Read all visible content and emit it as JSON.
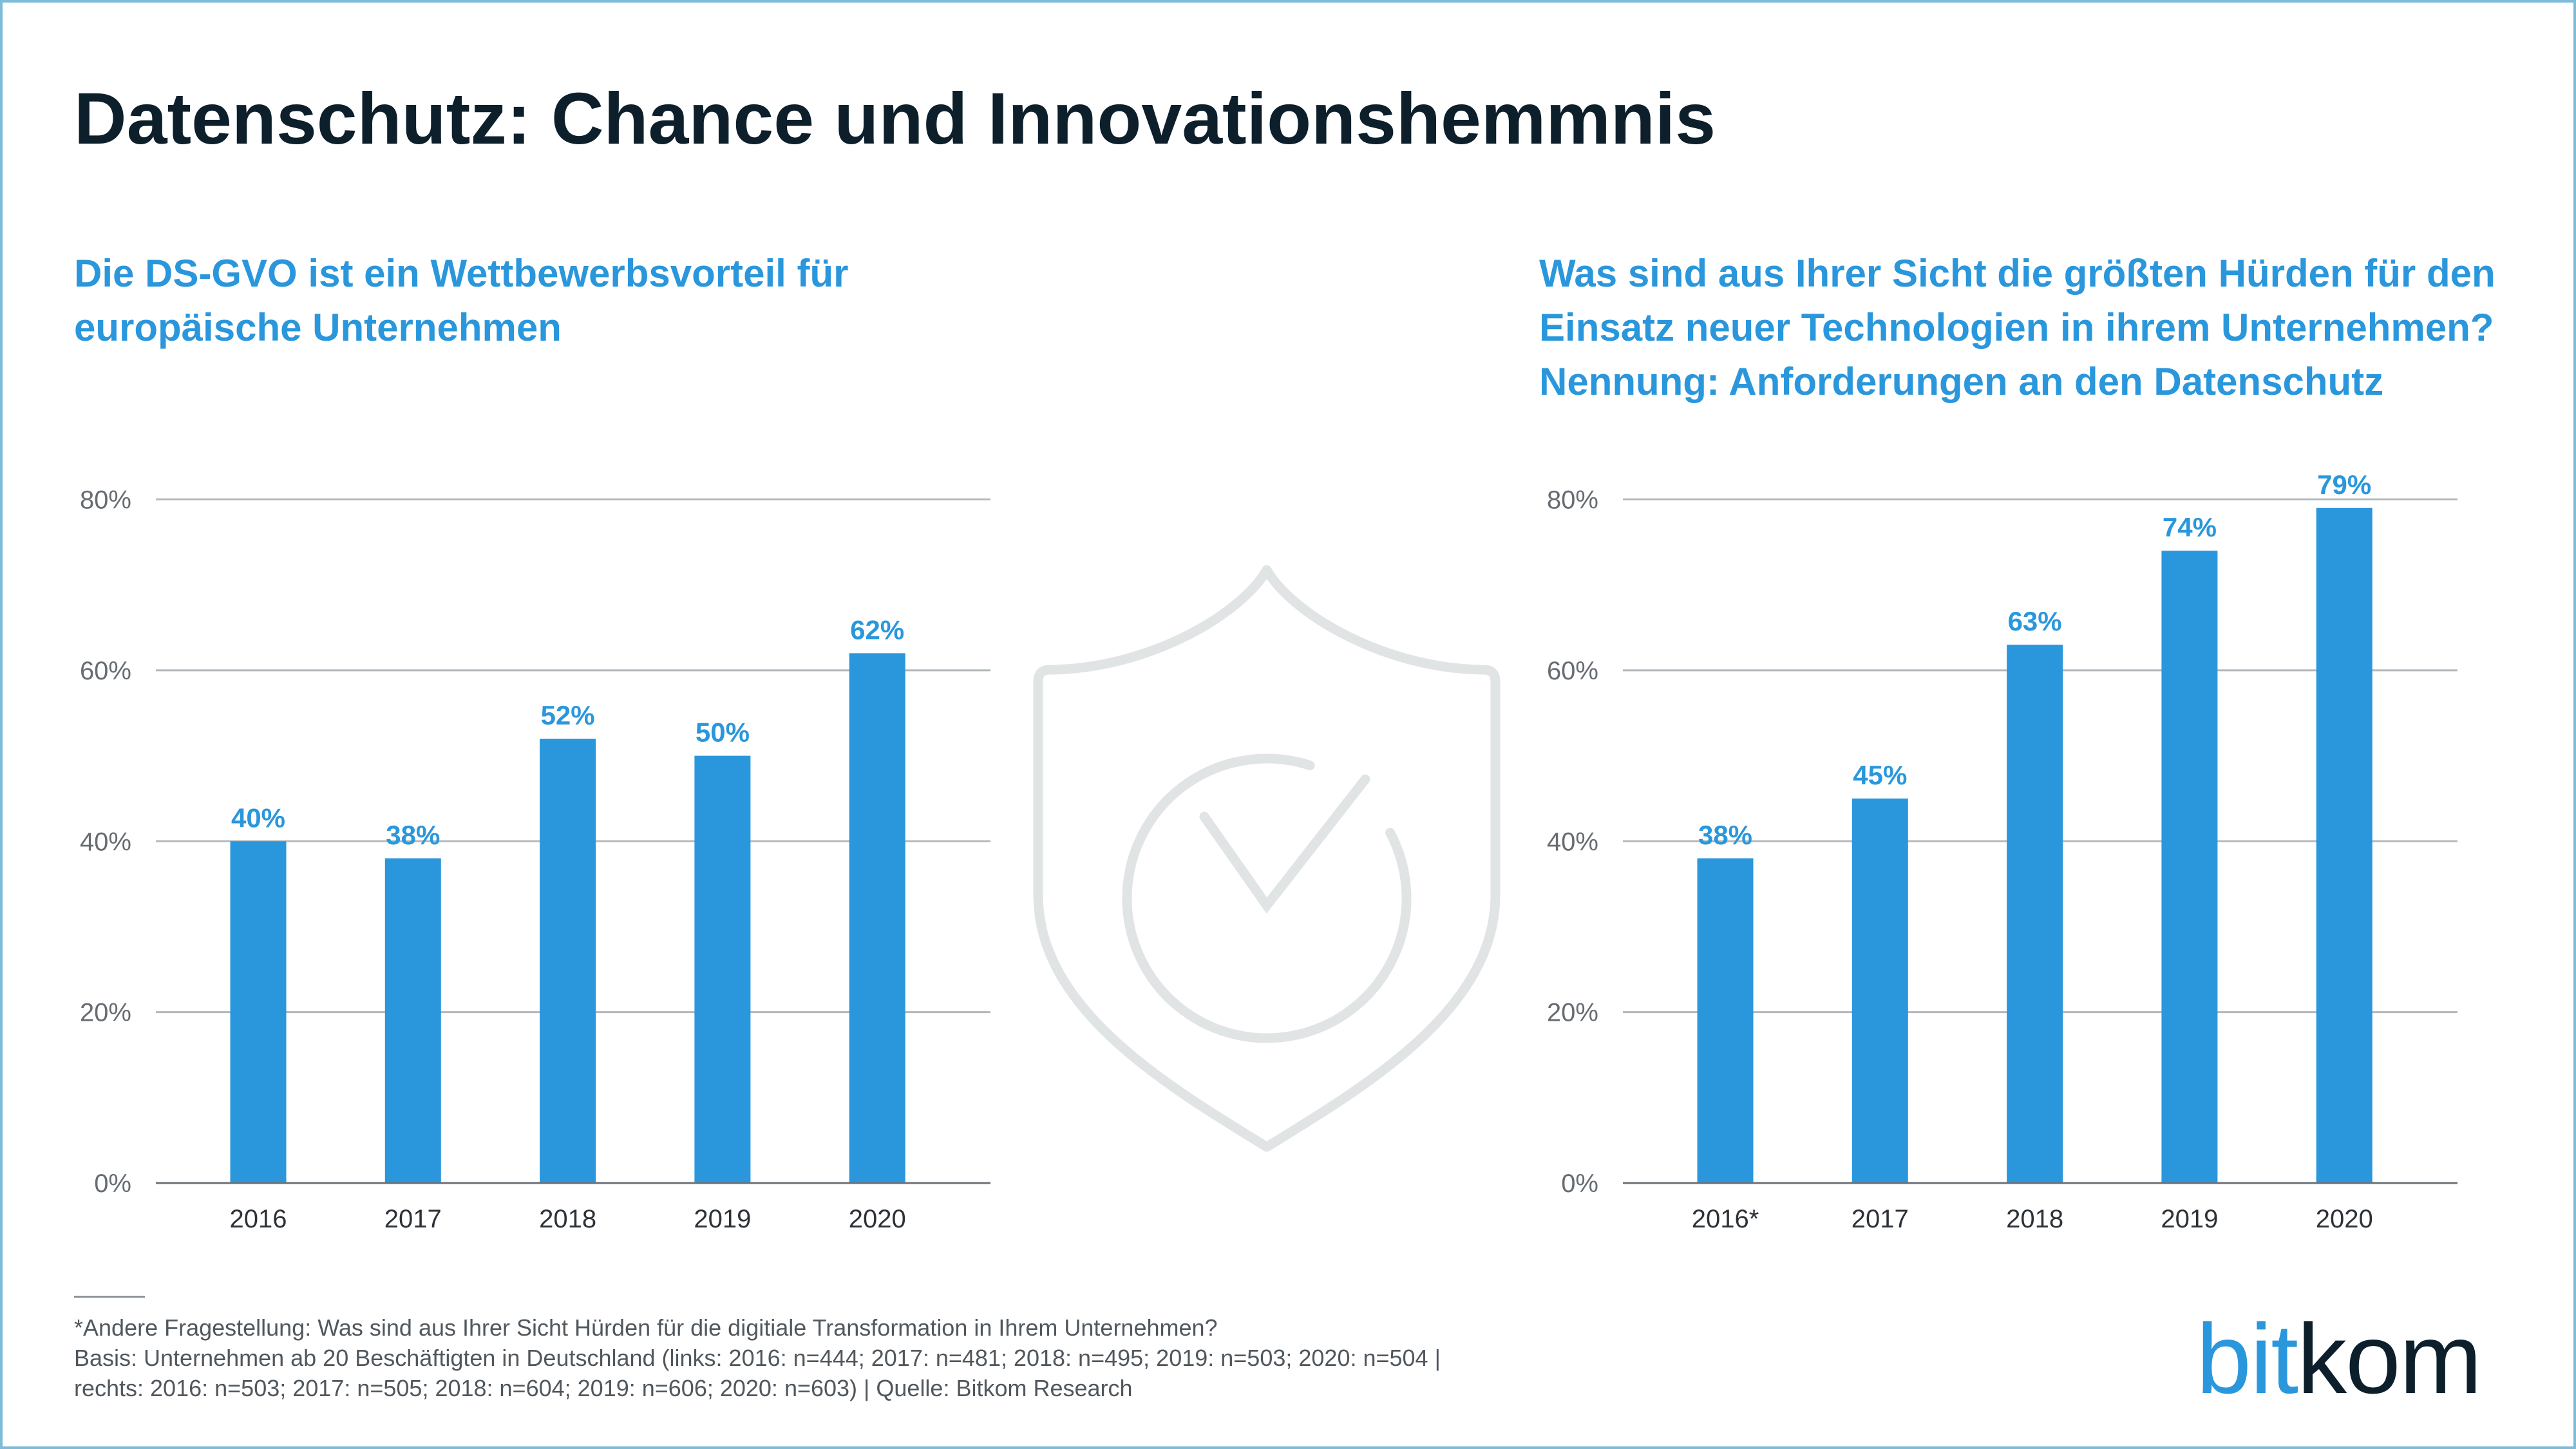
{
  "title": "Datenschutz: Chance und Innovationshemmnis",
  "colors": {
    "accent": "#2a97dc",
    "title": "#0e1f2c",
    "gridline": "#b3b8bc",
    "axis": "#6b7176",
    "tick_label": "#666c72",
    "category_label": "#2c3237",
    "footnote": "#50575d",
    "shield": "#e1e4e5",
    "frame": "#7dbcd9"
  },
  "background_icon": "shield-check-icon",
  "chart_data": [
    {
      "type": "bar",
      "title": "Die DS-GVO ist ein Wettbewerbsvorteil für\neuropäische Unternehmen",
      "categories": [
        "2016",
        "2017",
        "2018",
        "2019",
        "2020"
      ],
      "values": [
        40,
        38,
        52,
        50,
        62
      ],
      "value_labels": [
        "40%",
        "38%",
        "52%",
        "50%",
        "62%"
      ],
      "ylim": [
        0,
        80
      ],
      "yticks": [
        0,
        20,
        40,
        60,
        80
      ],
      "ytick_labels": [
        "0%",
        "20%",
        "40%",
        "60%",
        "80%"
      ],
      "grid": true
    },
    {
      "type": "bar",
      "title": "Was sind aus Ihrer Sicht die größten Hürden für den\nEinsatz neuer Technologien in ihrem Unternehmen?\nNennung: Anforderungen an den Datenschutz",
      "categories": [
        "2016*",
        "2017",
        "2018",
        "2019",
        "2020"
      ],
      "values": [
        38,
        45,
        63,
        74,
        79
      ],
      "value_labels": [
        "38%",
        "45%",
        "63%",
        "74%",
        "79%"
      ],
      "ylim": [
        0,
        80
      ],
      "yticks": [
        0,
        20,
        40,
        60,
        80
      ],
      "ytick_labels": [
        "0%",
        "20%",
        "40%",
        "60%",
        "80%"
      ],
      "grid": true
    }
  ],
  "footnote": [
    "*Andere Fragestellung: Was sind aus Ihrer Sicht Hürden für die digitiale Transformation in Ihrem Unternehmen?",
    "Basis: Unternehmen ab 20 Beschäftigten in Deutschland (links: 2016: n=444; 2017: n=481; 2018: n=495; 2019: n=503; 2020: n=504 |",
    "rechts: 2016: n=503; 2017: n=505; 2018: n=604; 2019: n=606; 2020: n=603) | Quelle: Bitkom Research"
  ],
  "logo": {
    "part1": "bit",
    "part2": "kom"
  }
}
